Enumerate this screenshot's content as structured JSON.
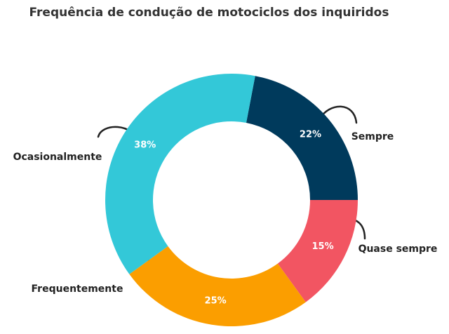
{
  "chart_data": {
    "type": "donut",
    "title": "Frequência de condução de motociclos dos inquiridos",
    "categories": [
      "Sempre",
      "Quase sempre",
      "Frequentemente",
      "Ocasionalmente"
    ],
    "values": [
      22,
      15,
      25,
      38
    ],
    "value_labels": [
      "22%",
      "15%",
      "25%",
      "38%"
    ],
    "colors": [
      "#003a5c",
      "#f25562",
      "#fb9e00",
      "#33c8d8"
    ]
  }
}
